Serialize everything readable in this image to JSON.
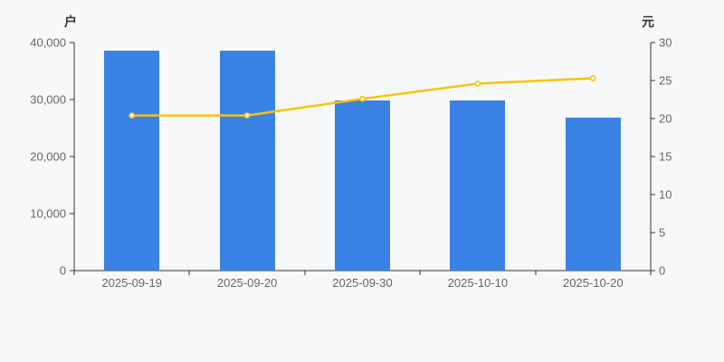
{
  "chart_data": {
    "type": "combo",
    "title": "",
    "background": "#f7f8f9",
    "grid": false,
    "legend": false,
    "categories": [
      "2025-09-19",
      "2025-09-20",
      "2025-09-30",
      "2025-10-10",
      "2025-10-20"
    ],
    "series": [
      {
        "name": "户",
        "type": "bar",
        "axis": "left",
        "color": "#3a82e4",
        "values": [
          38600,
          38600,
          29900,
          29900,
          26800
        ]
      },
      {
        "name": "元",
        "type": "line",
        "axis": "right",
        "color": "#fbc20d",
        "symbol": "circle-white-fill",
        "values": [
          20.4,
          20.4,
          22.6,
          24.6,
          25.3
        ]
      }
    ],
    "axes": {
      "y_left": {
        "name": "户",
        "min": 0,
        "max": 40000,
        "interval": 10000,
        "tick_labels": [
          "0",
          "10,000",
          "20,000",
          "30,000",
          "40,000"
        ]
      },
      "y_right": {
        "name": "元",
        "min": 0,
        "max": 30,
        "interval": 5,
        "tick_labels": [
          "0",
          "5",
          "10",
          "15",
          "20",
          "25",
          "30"
        ]
      },
      "x": {
        "tick_labels": [
          "2025-09-19",
          "2025-09-20",
          "2025-09-30",
          "2025-10-10",
          "2025-10-20"
        ]
      }
    },
    "colors": {
      "axis_line": "#333333",
      "tick_label": "#666666",
      "axis_name": "#333333",
      "bar": "#3a82e4",
      "line": "#fbc20d",
      "symbol_fill": "#ffffff"
    }
  }
}
